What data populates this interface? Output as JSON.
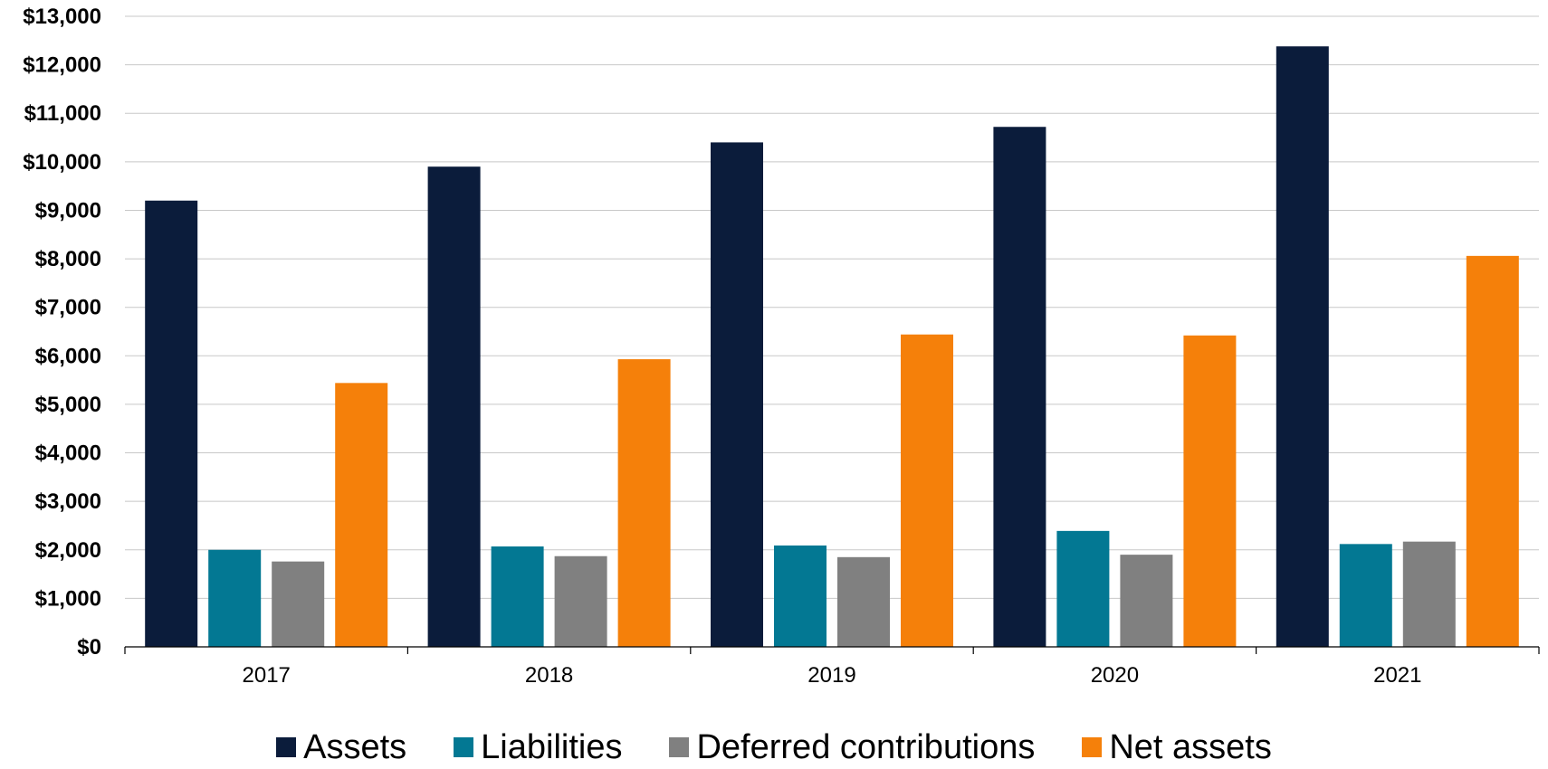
{
  "chart_data": {
    "type": "bar",
    "categories": [
      "2017",
      "2018",
      "2019",
      "2020",
      "2021"
    ],
    "series": [
      {
        "name": "Assets",
        "color": "#0b1c3b",
        "values": [
          9200,
          9900,
          10400,
          10720,
          12380
        ]
      },
      {
        "name": "Liabilities",
        "color": "#037893",
        "values": [
          2000,
          2070,
          2090,
          2390,
          2120
        ]
      },
      {
        "name": "Deferred contributions",
        "color": "#808080",
        "values": [
          1760,
          1870,
          1850,
          1900,
          2170
        ]
      },
      {
        "name": "Net assets",
        "color": "#f5800a",
        "values": [
          5440,
          5930,
          6440,
          6420,
          8060
        ]
      }
    ],
    "yticks": [
      "$0",
      "$1,000",
      "$2,000",
      "$3,000",
      "$4,000",
      "$5,000",
      "$6,000",
      "$7,000",
      "$8,000",
      "$9,000",
      "$10,000",
      "$11,000",
      "$12,000",
      "$13,000"
    ],
    "ylim": [
      0,
      13000
    ],
    "grid": true,
    "legend_position": "bottom"
  }
}
